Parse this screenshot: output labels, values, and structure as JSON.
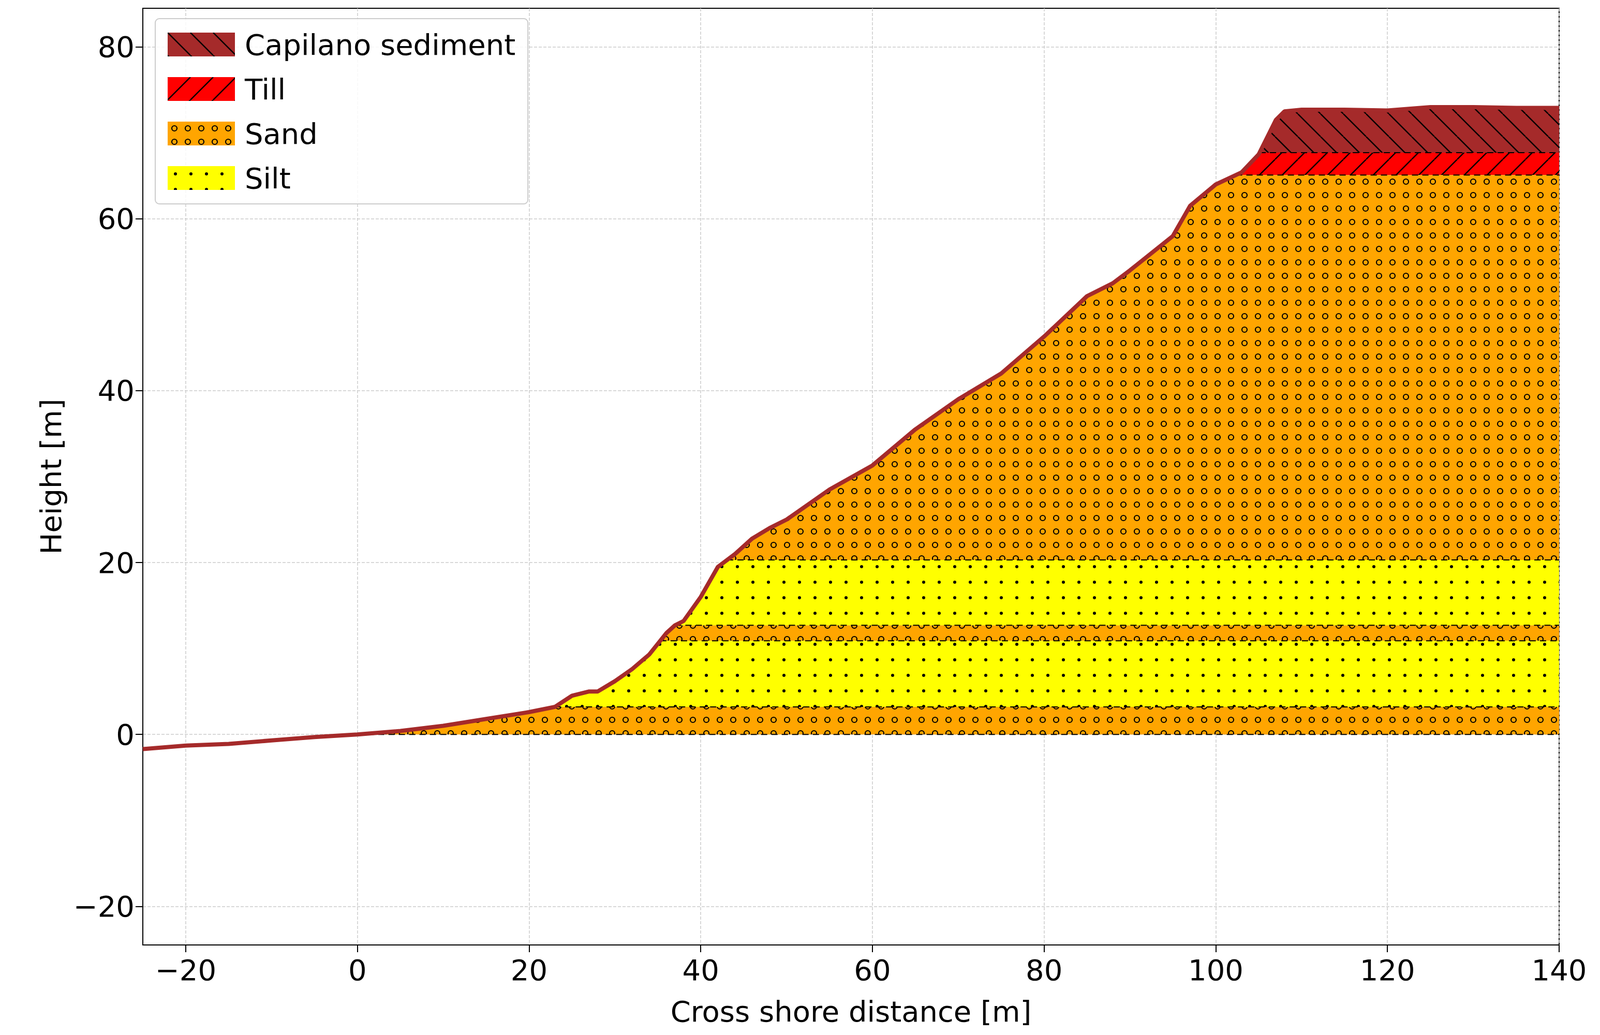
{
  "chart_data": {
    "type": "cross_section",
    "xlabel": "Cross shore distance [m]",
    "ylabel": "Height [m]",
    "xlim": [
      -25,
      140
    ],
    "ylim": [
      -24.5,
      84.5
    ],
    "xticks": [
      {
        "value": -20,
        "label": "−20"
      },
      0,
      20,
      40,
      60,
      80,
      100,
      120,
      140
    ],
    "yticks": [
      {
        "value": -20,
        "label": "−20"
      },
      0,
      20,
      40,
      60,
      80
    ],
    "grid": true,
    "legend": "upper left",
    "series": [
      {
        "name": "Capilano sediment",
        "color": "#a52a2a",
        "layers": [
          {
            "bottom": 67.7,
            "top": 73.0
          }
        ]
      },
      {
        "name": "Till",
        "color": "#ff0000",
        "layers": [
          {
            "bottom": 65.1,
            "top": 67.7
          }
        ]
      },
      {
        "name": "Sand",
        "color": "#ffa500",
        "layers": [
          {
            "bottom": 0,
            "top": 3.2
          },
          {
            "bottom": 10.9,
            "top": 12.7
          },
          {
            "bottom": 20.3,
            "top": 65.1
          }
        ]
      },
      {
        "name": "Silt",
        "color": "#ffff00",
        "layers": [
          {
            "bottom": 3.2,
            "top": 10.9
          },
          {
            "bottom": 12.7,
            "top": 20.3
          }
        ]
      }
    ],
    "surface": {
      "type": "line",
      "color": "#a52a2a",
      "line_style": "solid",
      "x": [
        -25,
        -20,
        -15,
        -10,
        -5,
        0,
        5,
        10,
        15,
        20,
        23,
        25,
        27,
        28,
        30,
        32,
        34,
        36,
        37,
        38,
        40,
        42,
        44,
        46,
        48,
        50,
        55,
        60,
        65,
        70,
        75,
        80,
        85,
        88,
        90,
        95,
        97,
        100,
        103,
        105,
        107,
        108,
        110,
        115,
        120,
        125,
        130,
        135,
        140
      ],
      "values": [
        -1.7,
        -1.3,
        -1.1,
        -0.7,
        -0.3,
        0,
        0.4,
        1.0,
        1.8,
        2.6,
        3.2,
        4.5,
        5.0,
        5.0,
        6.2,
        7.6,
        9.3,
        11.8,
        12.7,
        13.2,
        16.0,
        19.5,
        21.0,
        22.8,
        24.0,
        25.0,
        28.5,
        31.3,
        35.5,
        39.0,
        42.0,
        46.3,
        51.0,
        52.5,
        54.0,
        58.0,
        61.5,
        64.0,
        65.4,
        67.5,
        71.5,
        72.5,
        72.7,
        72.7,
        72.6,
        73.0,
        73.0,
        72.9,
        72.9
      ]
    }
  }
}
